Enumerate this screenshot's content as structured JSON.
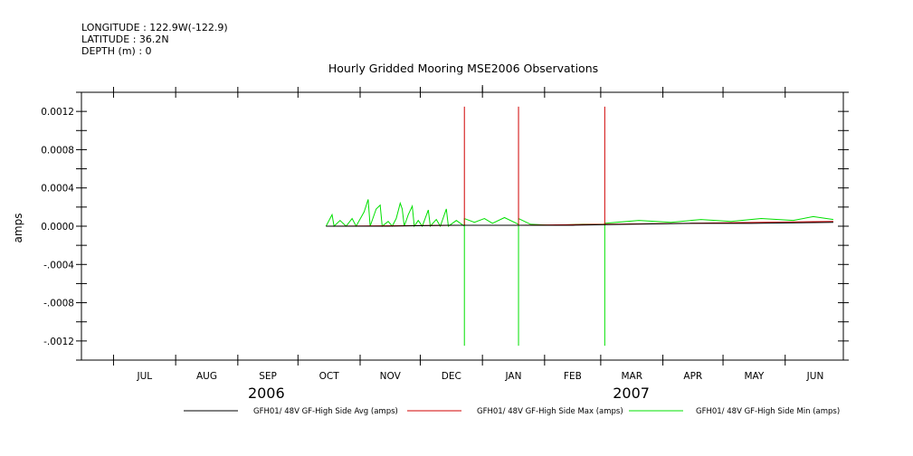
{
  "header": {
    "longitude": "LONGITUDE : 122.9W(-122.9)",
    "latitude": "LATITUDE : 36.2N",
    "depth": "DEPTH (m) : 0"
  },
  "chart_data": {
    "type": "line",
    "title": "Hourly Gridded Mooring MSE2006 Observations",
    "ylabel": "amps",
    "xlabel": "",
    "ylim": [
      -0.0014,
      0.0014
    ],
    "yticks": [
      -0.0012,
      -0.0008,
      -0.0004,
      0.0,
      0.0004,
      0.0008,
      0.0012
    ],
    "ytick_labels": [
      "-.0012",
      "-.0008",
      "-.0004",
      "0.0000",
      "0.0004",
      "0.0008",
      "0.0012"
    ],
    "xlim": [
      "2006-06-15",
      "2007-06-30"
    ],
    "month_labels": [
      "JUL",
      "AUG",
      "SEP",
      "OCT",
      "NOV",
      "DEC",
      "JAN",
      "FEB",
      "MAR",
      "APR",
      "MAY",
      "JUN"
    ],
    "year_labels": [
      "2006",
      "2007"
    ],
    "grid": false,
    "legend_position": "bottom",
    "series": [
      {
        "name": "GFH01/ 48V GF-High Side Avg (amps)",
        "color": "#000000",
        "points": [
          [
            "2006-10-15",
            0.0
          ],
          [
            "2006-11-15",
            0.0
          ],
          [
            "2006-12-15",
            1e-05
          ],
          [
            "2007-01-15",
            1e-05
          ],
          [
            "2007-02-15",
            1e-05
          ],
          [
            "2007-03-15",
            2e-05
          ],
          [
            "2007-04-15",
            3e-05
          ],
          [
            "2007-05-15",
            3e-05
          ],
          [
            "2007-06-25",
            4e-05
          ]
        ]
      },
      {
        "name": "GFH01/ 48V GF-High Side Max (amps)",
        "color": "#d00000",
        "points": [
          [
            "2006-10-15",
            0.0
          ],
          [
            "2006-12-23",
            1e-05
          ],
          [
            "2006-12-23",
            0.00125
          ],
          [
            "2006-12-23",
            1e-05
          ],
          [
            "2007-01-19",
            1e-05
          ],
          [
            "2007-01-19",
            0.00125
          ],
          [
            "2007-01-19",
            1e-05
          ],
          [
            "2007-03-03",
            2e-05
          ],
          [
            "2007-03-03",
            0.00125
          ],
          [
            "2007-03-03",
            2e-05
          ],
          [
            "2007-06-25",
            5e-05
          ]
        ]
      },
      {
        "name": "GFH01/ 48V GF-High Side Min (amps)",
        "color": "#00e000",
        "points": [
          [
            "2006-10-15",
            0.0
          ],
          [
            "2006-10-18",
            0.00012
          ],
          [
            "2006-10-19",
            0.0
          ],
          [
            "2006-10-22",
            6e-05
          ],
          [
            "2006-10-25",
            0.0
          ],
          [
            "2006-10-28",
            8e-05
          ],
          [
            "2006-10-30",
            0.0
          ],
          [
            "2006-11-03",
            0.00015
          ],
          [
            "2006-11-05",
            0.00028
          ],
          [
            "2006-11-06",
            0.0
          ],
          [
            "2006-11-09",
            0.00018
          ],
          [
            "2006-11-11",
            0.00022
          ],
          [
            "2006-11-12",
            0.0
          ],
          [
            "2006-11-15",
            5e-05
          ],
          [
            "2006-11-17",
            0.0
          ],
          [
            "2006-11-19",
            8e-05
          ],
          [
            "2006-11-21",
            0.00024
          ],
          [
            "2006-11-22",
            0.00018
          ],
          [
            "2006-11-23",
            0.0
          ],
          [
            "2006-11-25",
            0.00012
          ],
          [
            "2006-11-27",
            0.00021
          ],
          [
            "2006-11-28",
            0.0
          ],
          [
            "2006-11-30",
            6e-05
          ],
          [
            "2006-12-02",
            0.0
          ],
          [
            "2006-12-05",
            0.00017
          ],
          [
            "2006-12-06",
            0.0
          ],
          [
            "2006-12-09",
            7e-05
          ],
          [
            "2006-12-11",
            0.0
          ],
          [
            "2006-12-14",
            0.00018
          ],
          [
            "2006-12-15",
            0.0
          ],
          [
            "2006-12-19",
            6e-05
          ],
          [
            "2006-12-23",
            0.0
          ],
          [
            "2006-12-23",
            -0.00125
          ],
          [
            "2006-12-23",
            8e-05
          ],
          [
            "2006-12-28",
            4e-05
          ],
          [
            "2007-01-02",
            8e-05
          ],
          [
            "2007-01-06",
            3e-05
          ],
          [
            "2007-01-12",
            9e-05
          ],
          [
            "2007-01-19",
            2e-05
          ],
          [
            "2007-01-19",
            -0.00125
          ],
          [
            "2007-01-19",
            8e-05
          ],
          [
            "2007-01-25",
            2e-05
          ],
          [
            "2007-02-05",
            1e-05
          ],
          [
            "2007-02-20",
            2e-05
          ],
          [
            "2007-03-03",
            2e-05
          ],
          [
            "2007-03-03",
            -0.00125
          ],
          [
            "2007-03-03",
            3e-05
          ],
          [
            "2007-03-20",
            6e-05
          ],
          [
            "2007-04-05",
            4e-05
          ],
          [
            "2007-04-20",
            7e-05
          ],
          [
            "2007-05-05",
            5e-05
          ],
          [
            "2007-05-20",
            8e-05
          ],
          [
            "2007-06-05",
            6e-05
          ],
          [
            "2007-06-15",
            0.0001
          ],
          [
            "2007-06-25",
            7e-05
          ]
        ]
      }
    ]
  },
  "colors": {
    "axis": "#000000",
    "background": "#ffffff"
  }
}
